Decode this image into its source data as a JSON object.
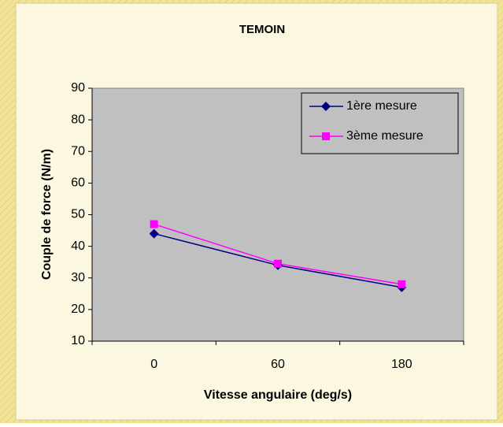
{
  "chart_data": {
    "type": "line",
    "title": "TEMOIN",
    "x_label": "Vitesse angulaire (deg/s)",
    "y_label": "Couple de force (N/m)",
    "categories": [
      "0",
      "60",
      "180"
    ],
    "series": [
      {
        "name": "1ère mesure",
        "color": "#000080",
        "marker": "diamond",
        "values": [
          44,
          34,
          27
        ]
      },
      {
        "name": "3ème mesure",
        "color": "#ff00ff",
        "marker": "square",
        "values": [
          47,
          34.5,
          28
        ]
      }
    ],
    "ylim": [
      10,
      90
    ],
    "yticks": [
      10,
      20,
      30,
      40,
      50,
      60,
      70,
      80,
      90
    ],
    "legend": "upper right"
  }
}
